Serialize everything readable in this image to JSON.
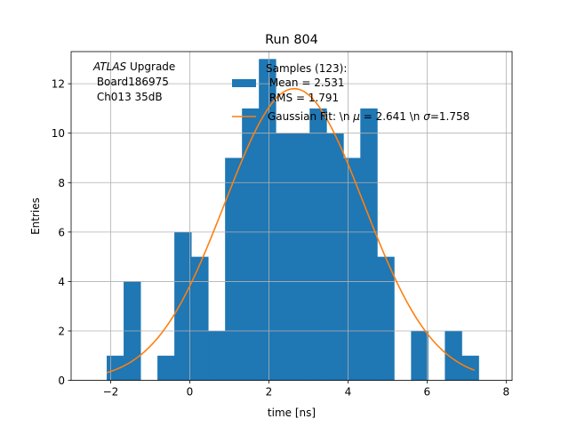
{
  "chart_data": {
    "type": "bar",
    "title": "Run 804",
    "xlabel": "time [ns]",
    "ylabel": "Entries",
    "xlim": [
      -3.0,
      8.15
    ],
    "ylim": [
      0,
      13.3
    ],
    "grid": true,
    "x_ticks": [
      -2,
      0,
      2,
      4,
      6,
      8
    ],
    "y_ticks": [
      0,
      2,
      4,
      6,
      8,
      10,
      12
    ],
    "bin_width": 0.4275,
    "bins": [
      {
        "x0": -2.1,
        "x1": -1.6725,
        "count": 1
      },
      {
        "x0": -1.6725,
        "x1": -1.245,
        "count": 4
      },
      {
        "x0": -1.245,
        "x1": -0.8175,
        "count": 0
      },
      {
        "x0": -0.8175,
        "x1": -0.39,
        "count": 1
      },
      {
        "x0": -0.39,
        "x1": 0.0375,
        "count": 6
      },
      {
        "x0": 0.0375,
        "x1": 0.465,
        "count": 5
      },
      {
        "x0": 0.465,
        "x1": 0.8925,
        "count": 2
      },
      {
        "x0": 0.8925,
        "x1": 1.32,
        "count": 9
      },
      {
        "x0": 1.32,
        "x1": 1.7475,
        "count": 11
      },
      {
        "x0": 1.7475,
        "x1": 2.175,
        "count": 13
      },
      {
        "x0": 2.175,
        "x1": 2.6025,
        "count": 10
      },
      {
        "x0": 2.6025,
        "x1": 3.03,
        "count": 10
      },
      {
        "x0": 3.03,
        "x1": 3.4575,
        "count": 11
      },
      {
        "x0": 3.4575,
        "x1": 3.885,
        "count": 10
      },
      {
        "x0": 3.885,
        "x1": 4.3125,
        "count": 9
      },
      {
        "x0": 4.3125,
        "x1": 4.74,
        "count": 11
      },
      {
        "x0": 4.74,
        "x1": 5.1675,
        "count": 5
      },
      {
        "x0": 5.1675,
        "x1": 5.595,
        "count": 0
      },
      {
        "x0": 5.595,
        "x1": 6.0225,
        "count": 2
      },
      {
        "x0": 6.0225,
        "x1": 6.45,
        "count": 0
      },
      {
        "x0": 6.45,
        "x1": 6.8775,
        "count": 2
      },
      {
        "x0": 6.8775,
        "x1": 7.305,
        "count": 1
      }
    ],
    "fit": {
      "mu": 2.641,
      "sigma": 1.758,
      "amplitude": 11.8,
      "x_range": [
        -2.1,
        7.2
      ]
    },
    "legend": {
      "placement": "top-center",
      "hist_label_lines": [
        "Samples (123):",
        " Mean = 2.531",
        " RMS = 1.791"
      ],
      "fit_label": "Gaussian Fit: \\n $\\mu$ = 2.641 \\n $\\sigma$=1.758"
    },
    "annotation": {
      "italic": "ATLAS",
      "line1_rest": " Upgrade",
      "line2": " Board186975",
      "line3": " Ch013 35dB"
    },
    "colors": {
      "hist": "#1f77b4",
      "fit": "#ff7f0e",
      "grid": "#b0b0b0"
    }
  }
}
